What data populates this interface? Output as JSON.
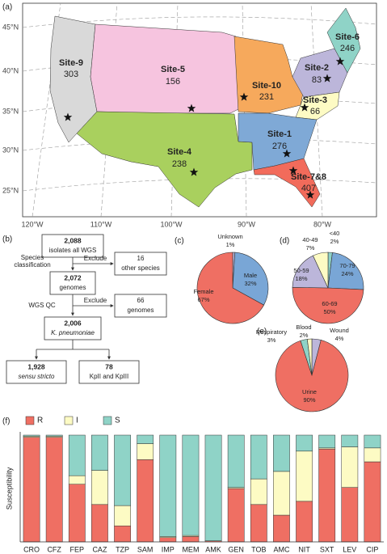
{
  "panels": {
    "a": "(a)",
    "b": "(b)",
    "c": "(c)",
    "d": "(d)",
    "e": "(e)",
    "f": "(f)"
  },
  "map": {
    "sites": [
      {
        "name": "Site-9",
        "count": 303
      },
      {
        "name": "Site-5",
        "count": 156
      },
      {
        "name": "Site-10",
        "count": 231
      },
      {
        "name": "Site-2",
        "count": 83
      },
      {
        "name": "Site-6",
        "count": 246
      },
      {
        "name": "Site-3",
        "count": 66
      },
      {
        "name": "Site-1",
        "count": 276
      },
      {
        "name": "Site-4",
        "count": 238
      },
      {
        "name": "Site-7&8",
        "count": 407
      }
    ],
    "lat_labels": [
      "45°N",
      "40°N",
      "35°N",
      "30°N",
      "25°N"
    ],
    "lon_labels": [
      "120°W",
      "110°W",
      "100°W",
      "90°W",
      "80°W"
    ]
  },
  "flowchart": {
    "nodes": [
      {
        "lines": [
          "2,088",
          "isolates all WGS"
        ]
      },
      {
        "lines": [
          "16",
          "other species"
        ]
      },
      {
        "lines": [
          "2,072",
          "genomes"
        ]
      },
      {
        "lines": [
          "66",
          "genomes"
        ]
      },
      {
        "lines": [
          "2,006",
          "K. pneumoniae"
        ]
      },
      {
        "lines": [
          "1,928",
          "sensu stricto"
        ]
      },
      {
        "lines": [
          "78",
          "KpII and KpIII"
        ]
      }
    ],
    "labels": [
      "Species",
      "classification",
      "Exclude",
      "WGS QC",
      "Exclude"
    ]
  },
  "chart_data": [
    {
      "type": "pie",
      "categories": [
        "Unknown",
        "Male",
        "Female"
      ],
      "values": [
        1,
        32,
        67
      ],
      "value_labels": [
        "1%",
        "32%",
        "67%"
      ],
      "colors": [
        "#bcb6da",
        "#79a6d6",
        "#ef6f63"
      ]
    },
    {
      "type": "pie",
      "categories": [
        "<40",
        "70-79",
        "60-69",
        "50-59",
        "40-49"
      ],
      "values": [
        2,
        24,
        50,
        18,
        7
      ],
      "value_labels": [
        "2%",
        "24%",
        "50%",
        "18%",
        "7%"
      ],
      "colors": [
        "#8fd3c7",
        "#79a6d6",
        "#ef6f63",
        "#bcb6da",
        "#fdfbc4"
      ]
    },
    {
      "type": "pie",
      "categories": [
        "Wound",
        "Urine",
        "Respiratory",
        "Blood"
      ],
      "values": [
        4,
        90,
        3,
        2
      ],
      "value_labels": [
        "4%",
        "90%",
        "3%",
        "2%"
      ],
      "colors": [
        "#bcb6da",
        "#ef6f63",
        "#8fd3c7",
        "#fdfbc4"
      ]
    },
    {
      "type": "bar",
      "stacked": true,
      "ylabel": "Susceptibility",
      "categories": [
        "CRO",
        "CFZ",
        "FEP",
        "CAZ",
        "TZP",
        "SAM",
        "IMP",
        "MEM",
        "AMK",
        "GEN",
        "TOB",
        "AMC",
        "NIT",
        "SXT",
        "LEV",
        "CIP"
      ],
      "series": [
        {
          "name": "R",
          "color": "#ef6f63",
          "values": [
            98,
            98,
            54,
            35,
            15,
            77,
            4,
            5,
            1,
            50,
            35,
            25,
            38,
            87,
            51,
            75
          ]
        },
        {
          "name": "I",
          "color": "#fdfbc4",
          "values": [
            1,
            1,
            8,
            32,
            19,
            15,
            1,
            1,
            0,
            1,
            24,
            41,
            47,
            1,
            38,
            13
          ]
        },
        {
          "name": "S",
          "color": "#8fd3c7",
          "values": [
            1,
            1,
            38,
            33,
            66,
            8,
            95,
            94,
            99,
            49,
            41,
            34,
            15,
            12,
            11,
            12
          ]
        }
      ],
      "ylim": [
        0,
        100
      ]
    }
  ]
}
